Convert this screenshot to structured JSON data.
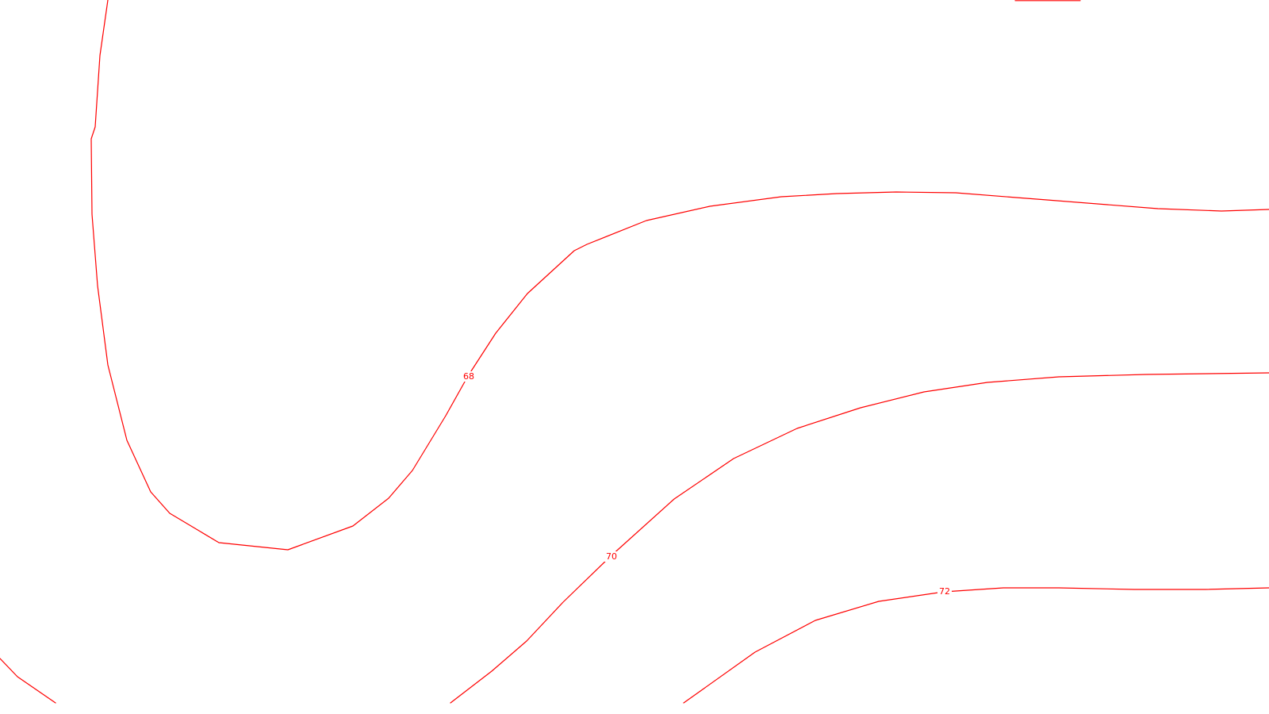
{
  "map": {
    "background_color": "#ffffff",
    "contour_color": "#ff0000",
    "contours": [
      {
        "id": "68",
        "label": "68"
      },
      {
        "id": "70",
        "label": "70"
      },
      {
        "id": "72",
        "label": "72"
      }
    ]
  }
}
